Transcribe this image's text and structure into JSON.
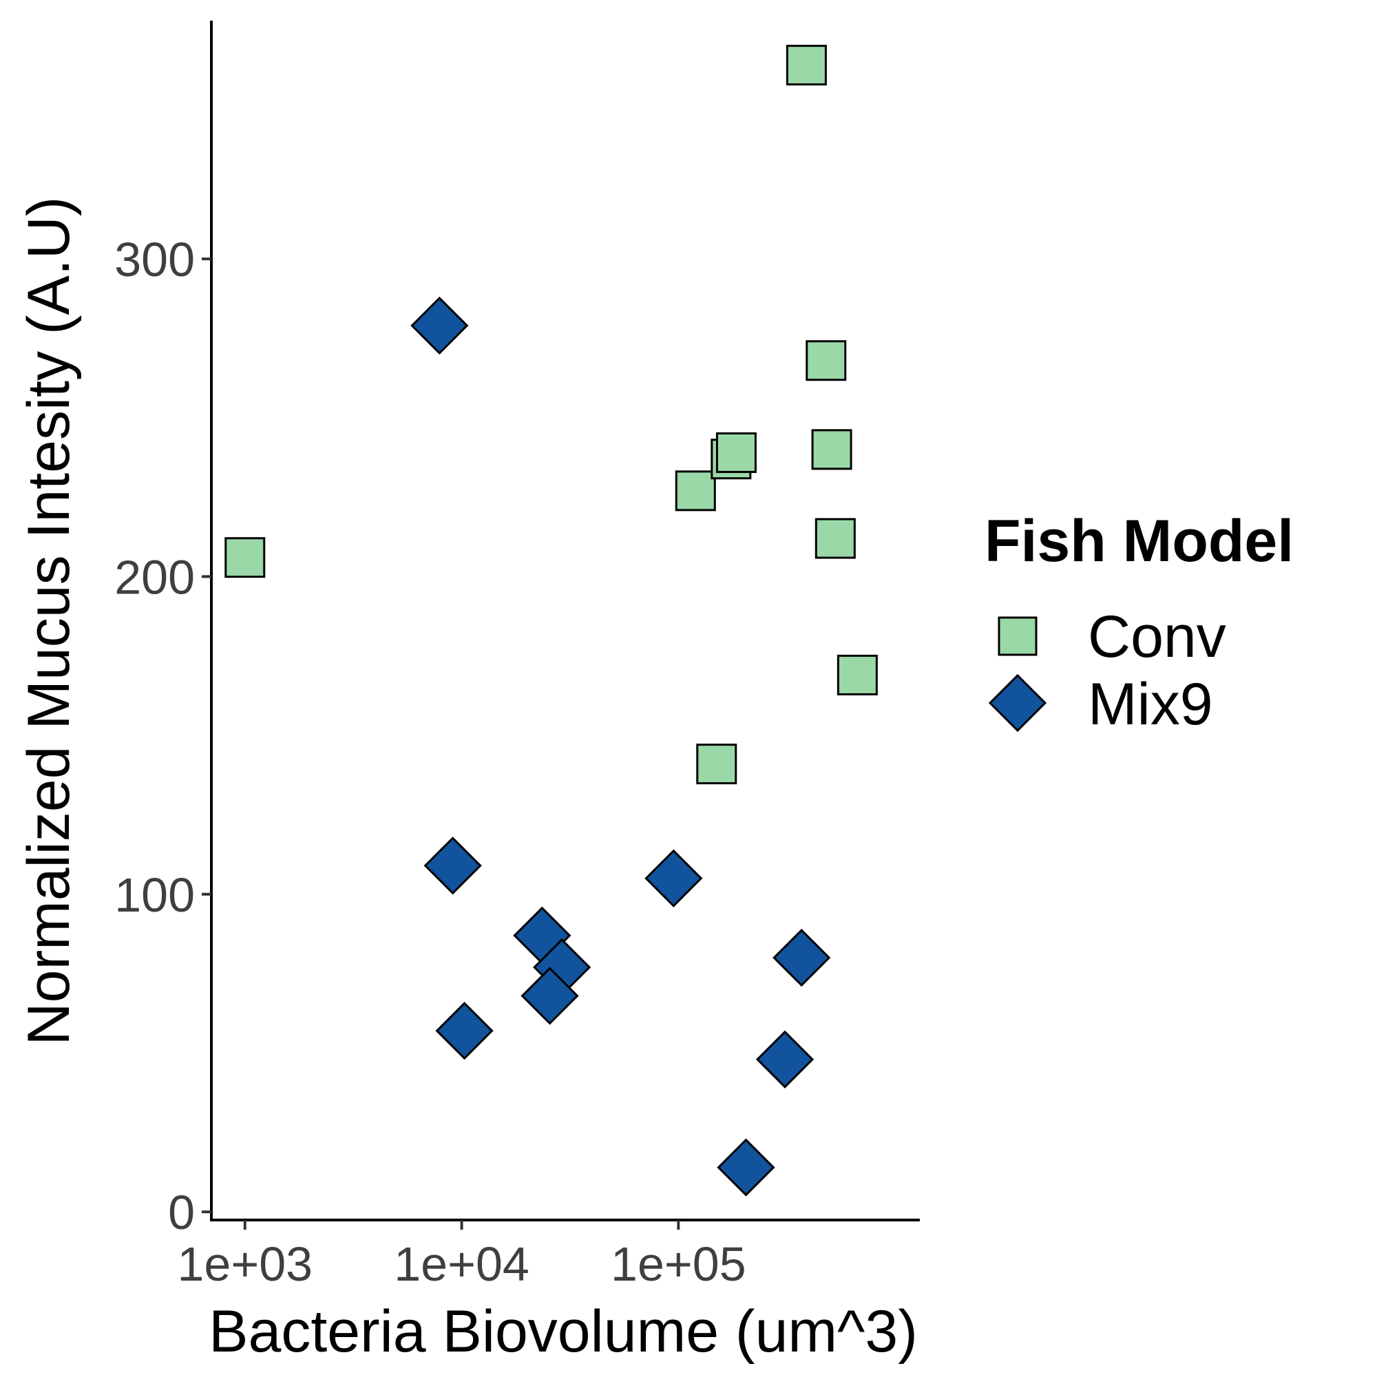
{
  "chart_data": {
    "type": "scatter",
    "xlabel": "Bacteria Biovolume (um^3)",
    "ylabel": "Normalized Mucus Intesity (A.U)",
    "x_scale": "log10",
    "xlim": [
      700,
      1300000
    ],
    "ylim": [
      -3,
      375
    ],
    "x_ticks": [
      {
        "value": 1000,
        "label": "1e+03"
      },
      {
        "value": 10000,
        "label": "1e+04"
      },
      {
        "value": 100000,
        "label": "1e+05"
      }
    ],
    "y_ticks": [
      {
        "value": 0,
        "label": "0"
      },
      {
        "value": 100,
        "label": "100"
      },
      {
        "value": 200,
        "label": "200"
      },
      {
        "value": 300,
        "label": "300"
      }
    ],
    "grid": false,
    "legend": {
      "title": "Fish Model",
      "position": "right"
    },
    "series": [
      {
        "name": "Conv",
        "marker": "square",
        "color": "#9bd8a8",
        "points": [
          {
            "x": 1000,
            "y": 206
          },
          {
            "x": 390000,
            "y": 361
          },
          {
            "x": 480000,
            "y": 268
          },
          {
            "x": 510000,
            "y": 240
          },
          {
            "x": 530000,
            "y": 212
          },
          {
            "x": 670000,
            "y": 169
          },
          {
            "x": 120000,
            "y": 227
          },
          {
            "x": 175000,
            "y": 237
          },
          {
            "x": 185000,
            "y": 239
          },
          {
            "x": 150000,
            "y": 141
          }
        ]
      },
      {
        "name": "Mix9",
        "marker": "diamond",
        "color": "#11539d",
        "points": [
          {
            "x": 7900,
            "y": 279
          },
          {
            "x": 9100,
            "y": 109
          },
          {
            "x": 10300,
            "y": 57
          },
          {
            "x": 23500,
            "y": 87
          },
          {
            "x": 29000,
            "y": 77
          },
          {
            "x": 25500,
            "y": 68
          },
          {
            "x": 95000,
            "y": 105
          },
          {
            "x": 205000,
            "y": 14
          },
          {
            "x": 310000,
            "y": 48
          },
          {
            "x": 370000,
            "y": 80
          }
        ]
      }
    ]
  }
}
